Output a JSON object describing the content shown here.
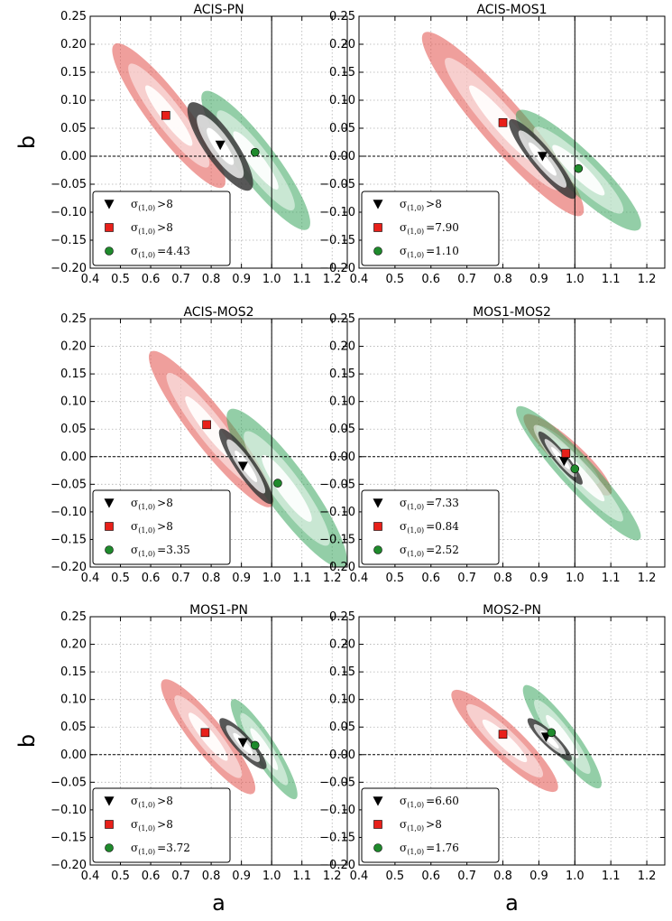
{
  "figure": {
    "xlabel": "a",
    "ylabel": "b"
  },
  "colors": {
    "black": "#3a3a3a",
    "red": "#e2504a",
    "green": "#3aa65e"
  },
  "chart_data": [
    {
      "type": "scatter",
      "title": "ACIS-PN",
      "xlim": [
        0.4,
        1.25
      ],
      "ylim": [
        -0.2,
        0.25
      ],
      "xlabel": "",
      "ylabel": "b",
      "xticks": [
        0.4,
        0.5,
        0.6,
        0.7,
        0.8,
        0.9,
        1.0,
        1.1,
        1.2
      ],
      "yticks": [
        -0.2,
        -0.15,
        -0.1,
        -0.05,
        0.0,
        0.05,
        0.1,
        0.15,
        0.2,
        0.25
      ],
      "series": [
        {
          "name": "black",
          "marker": "triangle-down",
          "x": 0.83,
          "y": 0.02,
          "legend": ">8",
          "contour_endpoints": [
            [
              0.73,
              0.095
            ],
            [
              0.93,
              -0.06
            ]
          ],
          "contour_halfwidth": 0.028
        },
        {
          "name": "red",
          "marker": "square",
          "x": 0.65,
          "y": 0.073,
          "legend": ">8",
          "contour_endpoints": [
            [
              0.48,
              0.2
            ],
            [
              0.84,
              -0.055
            ]
          ],
          "contour_halfwidth": 0.035
        },
        {
          "name": "green",
          "marker": "circle",
          "x": 0.945,
          "y": 0.007,
          "legend": "=4.43",
          "contour_endpoints": [
            [
              0.775,
              0.115
            ],
            [
              1.12,
              -0.13
            ]
          ],
          "contour_halfwidth": 0.035
        }
      ]
    },
    {
      "type": "scatter",
      "title": "ACIS-MOS1",
      "xlim": [
        0.4,
        1.25
      ],
      "ylim": [
        -0.2,
        0.25
      ],
      "xlabel": "",
      "ylabel": "",
      "xticks": [
        0.4,
        0.5,
        0.6,
        0.7,
        0.8,
        0.9,
        1.0,
        1.1,
        1.2
      ],
      "yticks": [
        -0.2,
        -0.15,
        -0.1,
        -0.05,
        0.0,
        0.05,
        0.1,
        0.15,
        0.2,
        0.25
      ],
      "series": [
        {
          "name": "black",
          "marker": "triangle-down",
          "x": 0.91,
          "y": 0.0,
          "legend": ">8",
          "contour_endpoints": [
            [
              0.82,
              0.065
            ],
            [
              1.0,
              -0.075
            ]
          ],
          "contour_halfwidth": 0.02
        },
        {
          "name": "red",
          "marker": "square",
          "x": 0.8,
          "y": 0.06,
          "legend": "=7.90",
          "contour_endpoints": [
            [
              0.58,
              0.22
            ],
            [
              1.02,
              -0.105
            ]
          ],
          "contour_halfwidth": 0.04
        },
        {
          "name": "green",
          "marker": "circle",
          "x": 1.01,
          "y": -0.022,
          "legend": "=1.10",
          "contour_endpoints": [
            [
              0.84,
              0.08
            ],
            [
              1.18,
              -0.13
            ]
          ],
          "contour_halfwidth": 0.035
        }
      ]
    },
    {
      "type": "scatter",
      "title": "ACIS-MOS2",
      "xlim": [
        0.4,
        1.25
      ],
      "ylim": [
        -0.2,
        0.25
      ],
      "xlabel": "",
      "ylabel": "",
      "xticks": [
        0.4,
        0.5,
        0.6,
        0.7,
        0.8,
        0.9,
        1.0,
        1.1,
        1.2
      ],
      "yticks": [
        -0.2,
        -0.15,
        -0.1,
        -0.05,
        0.0,
        0.05,
        0.1,
        0.15,
        0.2,
        0.25
      ],
      "series": [
        {
          "name": "black",
          "marker": "triangle-down",
          "x": 0.905,
          "y": -0.017,
          "legend": ">8",
          "contour_endpoints": [
            [
              0.83,
              0.05
            ],
            [
              1.0,
              -0.085
            ]
          ],
          "contour_halfwidth": 0.018
        },
        {
          "name": "red",
          "marker": "square",
          "x": 0.785,
          "y": 0.058,
          "legend": ">8",
          "contour_endpoints": [
            [
              0.6,
              0.19
            ],
            [
              1.0,
              -0.09
            ]
          ],
          "contour_halfwidth": 0.035
        },
        {
          "name": "green",
          "marker": "circle",
          "x": 1.02,
          "y": -0.048,
          "legend": "=3.35",
          "contour_endpoints": [
            [
              0.86,
              0.085
            ],
            [
              1.24,
              -0.2
            ]
          ],
          "contour_halfwidth": 0.04
        }
      ]
    },
    {
      "type": "scatter",
      "title": "MOS1-MOS2",
      "xlim": [
        0.4,
        1.25
      ],
      "ylim": [
        -0.2,
        0.25
      ],
      "xlabel": "",
      "ylabel": "",
      "xticks": [
        0.4,
        0.5,
        0.6,
        0.7,
        0.8,
        0.9,
        1.0,
        1.1,
        1.2
      ],
      "yticks": [
        -0.2,
        -0.15,
        -0.1,
        -0.05,
        0.0,
        0.05,
        0.1,
        0.15,
        0.2,
        0.25
      ],
      "series": [
        {
          "name": "black",
          "marker": "triangle-down",
          "x": 0.97,
          "y": -0.008,
          "legend": "=7.33",
          "contour_endpoints": [
            [
              0.9,
              0.045
            ],
            [
              1.02,
              -0.05
            ]
          ],
          "contour_halfwidth": 0.012
        },
        {
          "name": "red",
          "marker": "square",
          "x": 0.975,
          "y": 0.006,
          "legend": "=0.84",
          "contour_endpoints": [
            [
              0.86,
              0.075
            ],
            [
              1.1,
              -0.068
            ]
          ],
          "contour_halfwidth": 0.025
        },
        {
          "name": "green",
          "marker": "circle",
          "x": 1.0,
          "y": -0.022,
          "legend": "=2.52",
          "contour_endpoints": [
            [
              0.84,
              0.09
            ],
            [
              1.18,
              -0.15
            ]
          ],
          "contour_halfwidth": 0.03
        }
      ]
    },
    {
      "type": "scatter",
      "title": "MOS1-PN",
      "xlim": [
        0.4,
        1.25
      ],
      "ylim": [
        -0.2,
        0.25
      ],
      "xlabel": "a",
      "ylabel": "b",
      "xticks": [
        0.4,
        0.5,
        0.6,
        0.7,
        0.8,
        0.9,
        1.0,
        1.1,
        1.2
      ],
      "yticks": [
        -0.2,
        -0.15,
        -0.1,
        -0.05,
        0.0,
        0.05,
        0.1,
        0.15,
        0.2,
        0.25
      ],
      "series": [
        {
          "name": "black",
          "marker": "triangle-down",
          "x": 0.905,
          "y": 0.022,
          "legend": ">8",
          "contour_endpoints": [
            [
              0.83,
              0.065
            ],
            [
              0.98,
              -0.025
            ]
          ],
          "contour_halfwidth": 0.016
        },
        {
          "name": "red",
          "marker": "square",
          "x": 0.78,
          "y": 0.04,
          "legend": ">8",
          "contour_endpoints": [
            [
              0.64,
              0.135
            ],
            [
              0.94,
              -0.07
            ]
          ],
          "contour_halfwidth": 0.03
        },
        {
          "name": "green",
          "marker": "circle",
          "x": 0.945,
          "y": 0.017,
          "legend": "=3.72",
          "contour_endpoints": [
            [
              0.87,
              0.1
            ],
            [
              1.08,
              -0.08
            ]
          ],
          "contour_halfwidth": 0.022
        }
      ]
    },
    {
      "type": "scatter",
      "title": "MOS2-PN",
      "xlim": [
        0.4,
        1.25
      ],
      "ylim": [
        -0.2,
        0.25
      ],
      "xlabel": "a",
      "ylabel": "",
      "xticks": [
        0.4,
        0.5,
        0.6,
        0.7,
        0.8,
        0.9,
        1.0,
        1.1,
        1.2
      ],
      "yticks": [
        -0.2,
        -0.15,
        -0.1,
        -0.05,
        0.0,
        0.05,
        0.1,
        0.15,
        0.2,
        0.25
      ],
      "series": [
        {
          "name": "black",
          "marker": "triangle-down",
          "x": 0.92,
          "y": 0.032,
          "legend": "=6.60",
          "contour_endpoints": [
            [
              0.87,
              0.065
            ],
            [
              0.99,
              -0.01
            ]
          ],
          "contour_halfwidth": 0.013
        },
        {
          "name": "red",
          "marker": "square",
          "x": 0.8,
          "y": 0.037,
          "legend": ">8",
          "contour_endpoints": [
            [
              0.66,
              0.115
            ],
            [
              0.95,
              -0.065
            ]
          ],
          "contour_halfwidth": 0.03
        },
        {
          "name": "green",
          "marker": "circle",
          "x": 0.935,
          "y": 0.04,
          "legend": "=1.76",
          "contour_endpoints": [
            [
              0.86,
              0.125
            ],
            [
              1.07,
              -0.06
            ]
          ],
          "contour_halfwidth": 0.025
        }
      ]
    }
  ]
}
